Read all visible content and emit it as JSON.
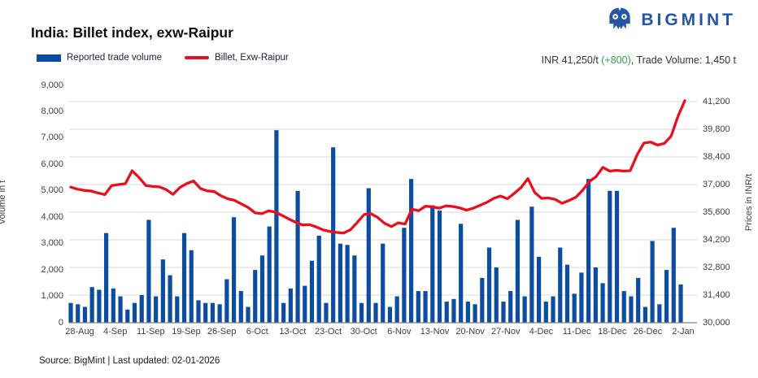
{
  "header": {
    "title": "India: Billet index, exw-Raipur"
  },
  "brand": {
    "name": "BIGMINT",
    "logo_icon": "bigmint-owl-mark",
    "color": "#2456a8"
  },
  "summary": {
    "price": "INR 41,250/t ",
    "change": "(+800)",
    "rest": ",  Trade Volume:  1,450 t",
    "change_color": "#2f9e4f"
  },
  "footer": {
    "source": "Source: BigMint | Last updated: 02-01-2026"
  },
  "chart_data": {
    "type": "bar",
    "subtype": "combo_bar_line_dual_axis",
    "grid": "horizontal_right_axis_steps",
    "legend_position": "top-left",
    "x_labels": [
      "28-Aug",
      "4-Sep",
      "11-Sep",
      "19-Sep",
      "26-Sep",
      "6-Oct",
      "13-Oct",
      "23-Oct",
      "30-Oct",
      "6-Nov",
      "13-Nov",
      "20-Nov",
      "27-Nov",
      "4-Dec",
      "11-Dec",
      "18-Dec",
      "26-Dec",
      "2-Jan"
    ],
    "axis_left": {
      "title": "Volume in t",
      "min": 0,
      "max": 9000,
      "step": 1000
    },
    "axis_right": {
      "title": "Prices in INR/t",
      "min": 30000,
      "max": 41200,
      "step": 1400
    },
    "series": [
      {
        "name": "Reported trade volume",
        "type": "bar",
        "axis": "left",
        "color": "#0d4da1",
        "values": [
          750,
          700,
          600,
          1350,
          1250,
          3400,
          1300,
          1000,
          500,
          750,
          1050,
          3900,
          1000,
          2400,
          1800,
          1000,
          3400,
          2750,
          850,
          750,
          750,
          700,
          1650,
          4000,
          1200,
          600,
          2000,
          2550,
          3650,
          7300,
          750,
          1300,
          5000,
          1400,
          2350,
          3300,
          750,
          6650,
          3000,
          2950,
          2550,
          750,
          5100,
          750,
          3000,
          600,
          1000,
          3600,
          5450,
          1200,
          1200,
          4450,
          4250,
          800,
          900,
          3750,
          800,
          700,
          1700,
          2850,
          2100,
          800,
          1200,
          3900,
          1000,
          4400,
          2500,
          800,
          1000,
          2850,
          2200,
          1100,
          1900,
          5450,
          2100,
          1500,
          5000,
          5000,
          1200,
          1000,
          1700,
          600,
          3100,
          700,
          2000,
          3600,
          1450
        ]
      },
      {
        "name": "Billet, Exw-Raipur",
        "type": "line",
        "axis": "right",
        "color": "#e8101c",
        "values": [
          36870,
          36760,
          36700,
          36670,
          36570,
          36490,
          36950,
          37000,
          37040,
          37700,
          37360,
          36950,
          36900,
          36880,
          36740,
          36500,
          36850,
          37050,
          37180,
          36800,
          36680,
          36650,
          36430,
          36280,
          36200,
          36020,
          35840,
          35570,
          35520,
          35670,
          35600,
          35430,
          35250,
          35080,
          34950,
          34970,
          34850,
          34700,
          34620,
          34570,
          34540,
          34710,
          35080,
          35480,
          35520,
          35330,
          35030,
          34870,
          35060,
          35000,
          35750,
          35680,
          35900,
          35870,
          35800,
          35920,
          35890,
          35820,
          35700,
          35800,
          35950,
          36100,
          36300,
          36420,
          36280,
          36550,
          36850,
          37300,
          36600,
          36300,
          36320,
          36250,
          36050,
          36190,
          36350,
          36700,
          37150,
          37400,
          37870,
          37680,
          37720,
          37680,
          37700,
          38500,
          39100,
          39150,
          39000,
          39080,
          39450,
          40450,
          41250
        ]
      }
    ],
    "latest": {
      "price_inr_t": 41250,
      "price_change": 800,
      "trade_volume_t": 1450
    }
  }
}
